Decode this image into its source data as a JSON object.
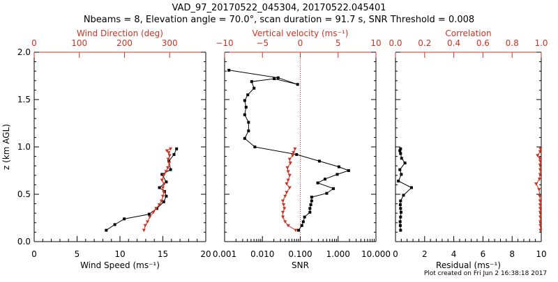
{
  "header": {
    "title_line1": "VAD_97_20170522_045304, 20170522.045401",
    "title_line2": "Nbeams = 8, Elevation angle = 70.0°, scan duration = 91.7 s, SNR Threshold = 0.008",
    "footer": "Plot created on Fri Jun  2 16:38:18 2017"
  },
  "colors": {
    "axis": "#000000",
    "accent": "#cc3322",
    "reference_line": "#cc3322"
  },
  "chart_data": [
    {
      "type": "line",
      "panel": "wind",
      "ylabel": "z (km AGL)",
      "ylim": [
        0,
        2.0
      ],
      "yticks": [
        "0.0",
        "0.5",
        "1.0",
        "1.5",
        "2.0"
      ],
      "xlabel": "Wind Speed (ms⁻¹)",
      "xlim": [
        0,
        20
      ],
      "xticks": [
        "0",
        "5",
        "10",
        "15",
        "20"
      ],
      "top_label": "Wind Direction (deg)",
      "top_xlim": [
        0,
        380
      ],
      "top_xticks": [
        {
          "value": 0,
          "label": "0"
        },
        {
          "value": 100,
          "label": "100"
        },
        {
          "value": 200,
          "label": "200"
        },
        {
          "value": 300,
          "label": "300"
        }
      ],
      "series": [
        {
          "name": "Wind Speed",
          "color": "#000000",
          "axis": "bottom",
          "x": [
            8.4,
            9.4,
            10.5,
            13.4,
            14.3,
            15.1,
            15.4,
            15.2,
            14.6,
            15.4,
            14.9,
            15.9,
            15.7,
            16.3,
            16.6
          ],
          "y": [
            0.12,
            0.18,
            0.24,
            0.29,
            0.35,
            0.42,
            0.48,
            0.53,
            0.57,
            0.63,
            0.71,
            0.76,
            0.85,
            0.92,
            0.98
          ]
        },
        {
          "name": "Wind Direction",
          "color": "#cc3322",
          "axis": "top",
          "x": [
            243,
            246,
            251,
            256,
            264,
            270,
            277,
            282,
            285,
            287,
            285,
            288,
            283,
            287,
            292,
            296,
            299,
            297,
            300,
            298,
            294,
            302
          ],
          "y": [
            0.12,
            0.17,
            0.21,
            0.26,
            0.31,
            0.35,
            0.39,
            0.43,
            0.48,
            0.52,
            0.57,
            0.61,
            0.65,
            0.7,
            0.74,
            0.78,
            0.83,
            0.87,
            0.91,
            0.94,
            0.96,
            0.98
          ]
        }
      ]
    },
    {
      "type": "line",
      "panel": "snr",
      "ylim": [
        0,
        2.0
      ],
      "xlabel": "SNR",
      "xscale": "log",
      "xlim": [
        0.001,
        10
      ],
      "xticks": [
        {
          "value": 0.001,
          "label": "0.001"
        },
        {
          "value": 0.01,
          "label": "0.010"
        },
        {
          "value": 0.1,
          "label": "0.100"
        },
        {
          "value": 1,
          "label": "1.000"
        },
        {
          "value": 10,
          "label": "10.000"
        }
      ],
      "top_label": "Vertical velocity (ms⁻¹)",
      "top_xlim": [
        -10,
        10
      ],
      "top_xticks": [
        {
          "value": -10,
          "label": "−10"
        },
        {
          "value": -5,
          "label": "−5"
        },
        {
          "value": 0,
          "label": "0"
        },
        {
          "value": 5,
          "label": "5"
        },
        {
          "value": 10,
          "label": "10"
        }
      ],
      "reference_line_top_x": 0,
      "series": [
        {
          "name": "SNR",
          "color": "#000000",
          "axis": "bottom",
          "x": [
            0.09,
            0.11,
            0.12,
            0.13,
            0.18,
            0.18,
            0.19,
            0.2,
            0.2,
            0.5,
            0.75,
            0.29,
            0.45,
            0.95,
            1.9,
            1.05,
            0.32,
            0.08,
            0.0063,
            0.0034,
            0.0043,
            0.0043,
            0.0034,
            0.0037,
            0.0034,
            0.0041,
            0.006,
            0.0052,
            0.0205,
            0.085,
            0.026,
            0.0013
          ],
          "y": [
            0.12,
            0.17,
            0.21,
            0.26,
            0.31,
            0.35,
            0.39,
            0.43,
            0.47,
            0.51,
            0.56,
            0.62,
            0.66,
            0.71,
            0.75,
            0.79,
            0.85,
            0.92,
            1.0,
            1.09,
            1.17,
            1.26,
            1.34,
            1.42,
            1.49,
            1.55,
            1.62,
            1.69,
            1.72,
            1.66,
            1.73,
            1.81
          ]
        },
        {
          "name": "Vertical velocity",
          "color": "#cc3322",
          "axis": "top",
          "x": [
            -0.6,
            -1.6,
            -2.0,
            -2.3,
            -2.3,
            -2.1,
            -2.2,
            -2.3,
            -2.0,
            -1.8,
            -1.4,
            -1.8,
            -1.6,
            -1.4,
            -1.6,
            -1.7,
            -1.3,
            -1.4,
            -1.0,
            -0.9,
            -0.7
          ],
          "y": [
            0.12,
            0.17,
            0.21,
            0.26,
            0.31,
            0.35,
            0.39,
            0.43,
            0.48,
            0.52,
            0.57,
            0.61,
            0.65,
            0.7,
            0.74,
            0.78,
            0.83,
            0.87,
            0.91,
            0.94,
            0.98
          ]
        }
      ]
    },
    {
      "type": "line",
      "panel": "residual",
      "ylim": [
        0,
        2.0
      ],
      "xlabel": "Residual (ms⁻¹)",
      "xlim": [
        0,
        10
      ],
      "xticks": [
        "0",
        "2",
        "4",
        "6",
        "8",
        "10"
      ],
      "top_label": "Correlation",
      "top_xlim": [
        0,
        1
      ],
      "top_xticks": [
        {
          "value": 0.0,
          "label": "0.0"
        },
        {
          "value": 0.2,
          "label": "0.2"
        },
        {
          "value": 0.4,
          "label": "0.4"
        },
        {
          "value": 0.6,
          "label": "0.6"
        },
        {
          "value": 0.8,
          "label": "0.8"
        },
        {
          "value": 1.0,
          "label": "1.0"
        }
      ],
      "series": [
        {
          "name": "Residual",
          "color": "#000000",
          "axis": "bottom",
          "x": [
            0.35,
            0.33,
            0.32,
            0.35,
            0.38,
            0.35,
            0.33,
            0.35,
            0.55,
            1.1,
            0.2,
            0.4,
            0.3,
            0.65,
            0.42,
            0.35,
            0.3,
            0.35
          ],
          "y": [
            0.12,
            0.17,
            0.21,
            0.26,
            0.31,
            0.35,
            0.39,
            0.43,
            0.49,
            0.57,
            0.64,
            0.71,
            0.76,
            0.83,
            0.88,
            0.93,
            0.96,
            0.98
          ]
        },
        {
          "name": "Correlation",
          "color": "#cc3322",
          "axis": "top",
          "x": [
            0.995,
            0.994,
            0.994,
            0.993,
            0.993,
            0.993,
            0.992,
            0.992,
            0.99,
            0.985,
            0.965,
            0.988,
            0.992,
            0.993,
            0.992,
            0.993,
            0.99,
            0.975,
            0.992,
            0.995
          ],
          "y": [
            0.12,
            0.17,
            0.21,
            0.26,
            0.31,
            0.35,
            0.39,
            0.43,
            0.48,
            0.55,
            0.61,
            0.66,
            0.71,
            0.76,
            0.81,
            0.85,
            0.88,
            0.91,
            0.95,
            0.98
          ]
        }
      ]
    }
  ]
}
